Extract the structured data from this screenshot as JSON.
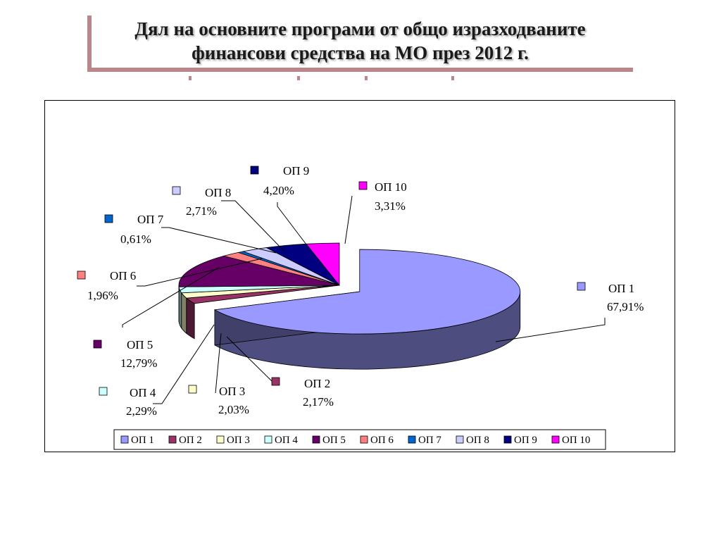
{
  "title": "Дял на основните програми от общо изразходваните финансови средства на МО през 2012 г.",
  "chart_data": {
    "type": "pie",
    "three_d": true,
    "exploded_slice": "ОП 1",
    "legend_position": "bottom",
    "slices": [
      {
        "name": "ОП 1",
        "value": 67.91,
        "label": "67,91%",
        "color": "#9999ff"
      },
      {
        "name": "ОП 2",
        "value": 2.17,
        "label": "2,17%",
        "color": "#993366"
      },
      {
        "name": "ОП 3",
        "value": 2.03,
        "label": "2,03%",
        "color": "#ffffcc"
      },
      {
        "name": "ОП 4",
        "value": 2.29,
        "label": "2,29%",
        "color": "#ccffff"
      },
      {
        "name": "ОП 5",
        "value": 12.79,
        "label": "12,79%",
        "color": "#660066"
      },
      {
        "name": "ОП 6",
        "value": 1.96,
        "label": "1,96%",
        "color": "#ff8080"
      },
      {
        "name": "ОП 7",
        "value": 0.61,
        "label": "0,61%",
        "color": "#0066cc"
      },
      {
        "name": "ОП 8",
        "value": 2.71,
        "label": "2,71%",
        "color": "#ccccff"
      },
      {
        "name": "ОП 9",
        "value": 4.2,
        "label": "4,20%",
        "color": "#000080"
      },
      {
        "name": "ОП 10",
        "value": 3.31,
        "label": "3,31%",
        "color": "#ff00ff"
      }
    ]
  }
}
